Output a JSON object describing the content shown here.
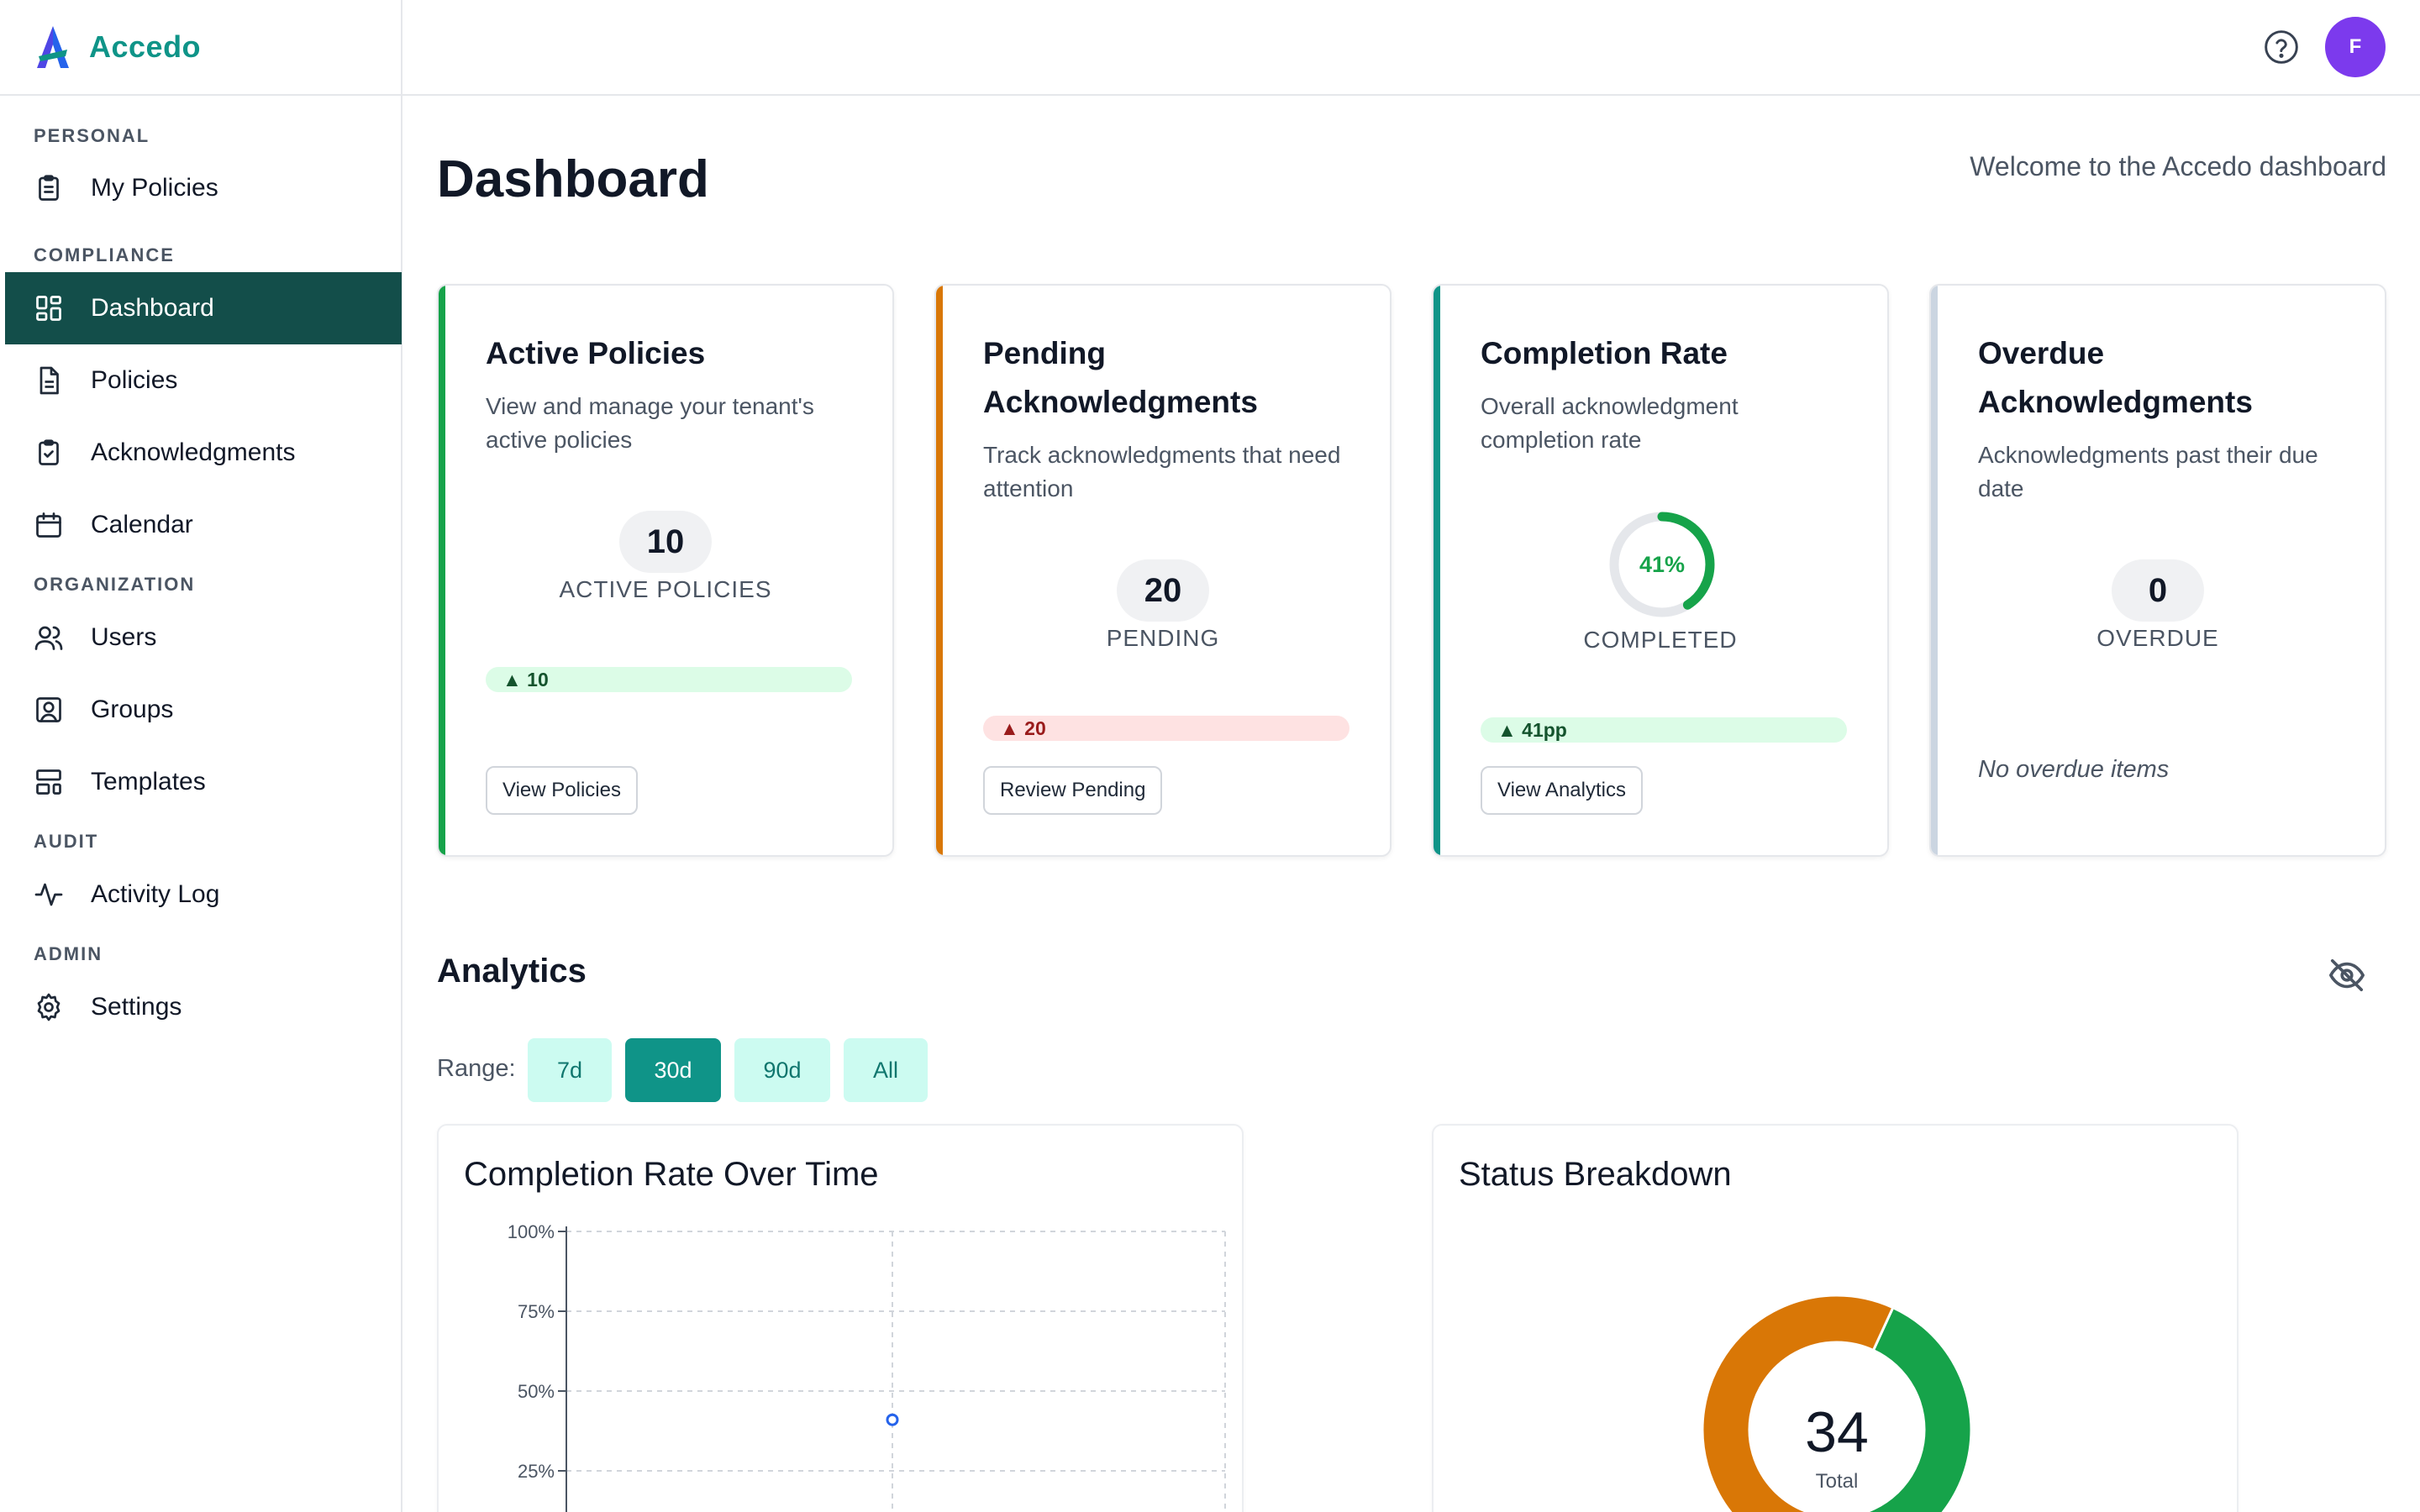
{
  "brand": {
    "name": "Accedo"
  },
  "sidebar": {
    "sections": [
      {
        "title": "PERSONAL",
        "items": [
          {
            "label": "My Policies",
            "icon": "clipboard-list-icon"
          }
        ]
      },
      {
        "title": "COMPLIANCE",
        "items": [
          {
            "label": "Dashboard",
            "icon": "dashboard-grid-icon",
            "active": true
          },
          {
            "label": "Policies",
            "icon": "document-icon"
          },
          {
            "label": "Acknowledgments",
            "icon": "clipboard-check-icon"
          },
          {
            "label": "Calendar",
            "icon": "calendar-icon"
          }
        ]
      },
      {
        "title": "ORGANIZATION",
        "items": [
          {
            "label": "Users",
            "icon": "users-icon"
          },
          {
            "label": "Groups",
            "icon": "user-square-icon"
          },
          {
            "label": "Templates",
            "icon": "layout-template-icon"
          }
        ]
      },
      {
        "title": "AUDIT",
        "items": [
          {
            "label": "Activity Log",
            "icon": "activity-icon"
          }
        ]
      },
      {
        "title": "ADMIN",
        "items": [
          {
            "label": "Settings",
            "icon": "gear-icon"
          }
        ]
      }
    ]
  },
  "topbar": {
    "avatar_initial": "F"
  },
  "main": {
    "title": "Dashboard",
    "welcome": "Welcome to the Accedo dashboard",
    "cards": {
      "active": {
        "title": "Active Policies",
        "desc": "View and manage your tenant's active policies",
        "value": "10",
        "label": "ACTIVE POLICIES",
        "trend": "▲ 10",
        "button": "View Policies",
        "accent": "#16a34a"
      },
      "pending": {
        "title": "Pending Acknowledgments",
        "desc": "Track acknowledgments that need attention",
        "value": "20",
        "label": "PENDING",
        "trend": "▲ 20",
        "button": "Review Pending",
        "accent": "#d97706"
      },
      "completion": {
        "title": "Completion Rate",
        "desc": "Overall acknowledgment completion rate",
        "value": "41%",
        "progress": 0.41,
        "label": "COMPLETED",
        "trend": "▲ 41pp",
        "button": "View Analytics",
        "accent": "#0f9488"
      },
      "overdue": {
        "title": "Overdue Acknowledgments",
        "desc": "Acknowledgments past their due date",
        "value": "0",
        "label": "OVERDUE",
        "note": "No overdue items",
        "accent": "#cbd5e1"
      }
    }
  },
  "analytics": {
    "title": "Analytics",
    "range_label": "Range:",
    "ranges": [
      "7d",
      "30d",
      "90d",
      "All"
    ],
    "active_range": "30d",
    "line_panel": {
      "title": "Completion Rate Over Time"
    },
    "donut_panel": {
      "title": "Status Breakdown",
      "total": "34",
      "total_label": "Total"
    }
  },
  "chart_data": [
    {
      "type": "line",
      "title": "Completion Rate Over Time",
      "ylim": [
        0,
        100
      ],
      "yticks": [
        "100%",
        "75%",
        "50%",
        "25%"
      ],
      "ytick_values": [
        100,
        75,
        50,
        25
      ],
      "x": [
        1
      ],
      "series": [
        {
          "values": [
            41
          ],
          "color": "#2563eb"
        }
      ]
    },
    {
      "type": "pie",
      "title": "Status Breakdown",
      "total": 34,
      "slices": [
        {
          "value": 14,
          "color": "#16a34a"
        },
        {
          "value": 20,
          "color": "#d97706"
        }
      ]
    }
  ]
}
